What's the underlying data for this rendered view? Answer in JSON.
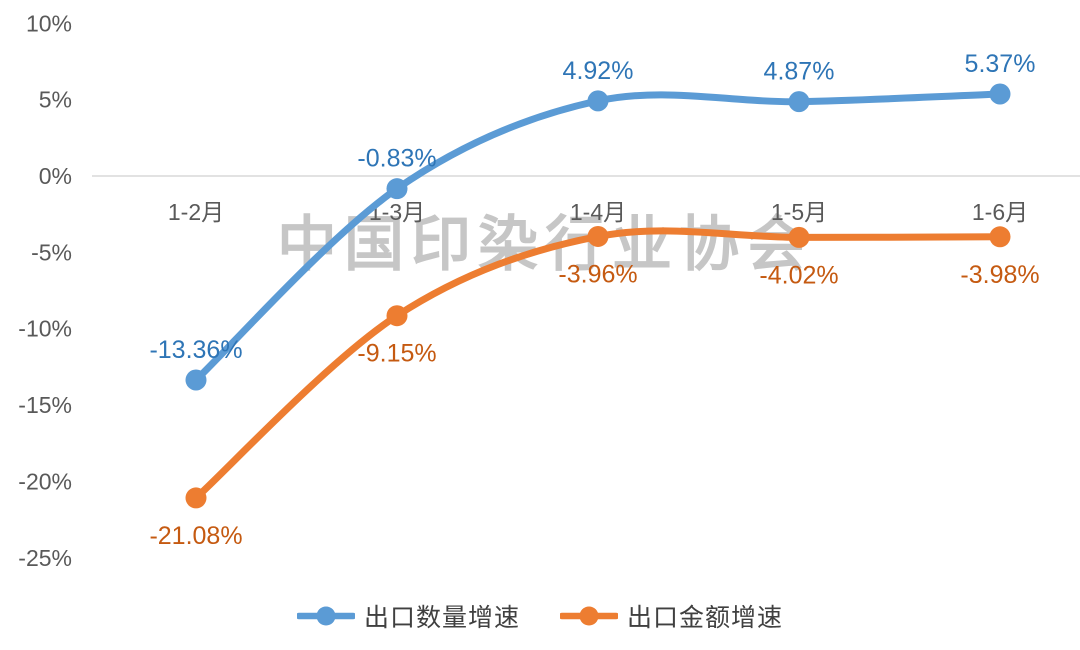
{
  "watermark": "中国印染行业协会",
  "chart_data": {
    "type": "line",
    "categories": [
      "1-2月",
      "1-3月",
      "1-4月",
      "1-5月",
      "1-6月"
    ],
    "series": [
      {
        "name": "出口数量增速",
        "color": "#5B9BD5",
        "label_color": "#2E75B6",
        "values": [
          -13.36,
          -0.83,
          4.92,
          4.87,
          5.37
        ],
        "data_labels": [
          "-13.36%",
          "-0.83%",
          "4.92%",
          "4.87%",
          "5.37%"
        ],
        "label_position": "above"
      },
      {
        "name": "出口金额增速",
        "color": "#ED7D31",
        "label_color": "#C55A11",
        "values": [
          -21.08,
          -9.15,
          -3.96,
          -4.02,
          -3.98
        ],
        "data_labels": [
          "-21.08%",
          "-9.15%",
          "-3.96%",
          "-4.02%",
          "-3.98%"
        ],
        "label_position": "below"
      }
    ],
    "y_axis": {
      "ticks": [
        "10%",
        "5%",
        "0%",
        "-5%",
        "-10%",
        "-15%",
        "-20%",
        "-25%"
      ],
      "tick_values": [
        10,
        5,
        0,
        -5,
        -10,
        -15,
        -20,
        -25
      ],
      "min": -25,
      "max": 10
    },
    "gridlines": [
      0
    ],
    "grid": "zero-line-only",
    "legend_position": "bottom",
    "title": "",
    "xlabel": "",
    "ylabel": "",
    "colors": {
      "axis_text": "#595959",
      "gridline": "#D9D9D9",
      "watermark": "#C6C6C6",
      "background": "#FFFFFF",
      "legend_text": "#404040"
    }
  },
  "legend": {
    "items": [
      {
        "label": "出口数量增速",
        "color": "#5B9BD5"
      },
      {
        "label": "出口金额增速",
        "color": "#ED7D31"
      }
    ]
  }
}
